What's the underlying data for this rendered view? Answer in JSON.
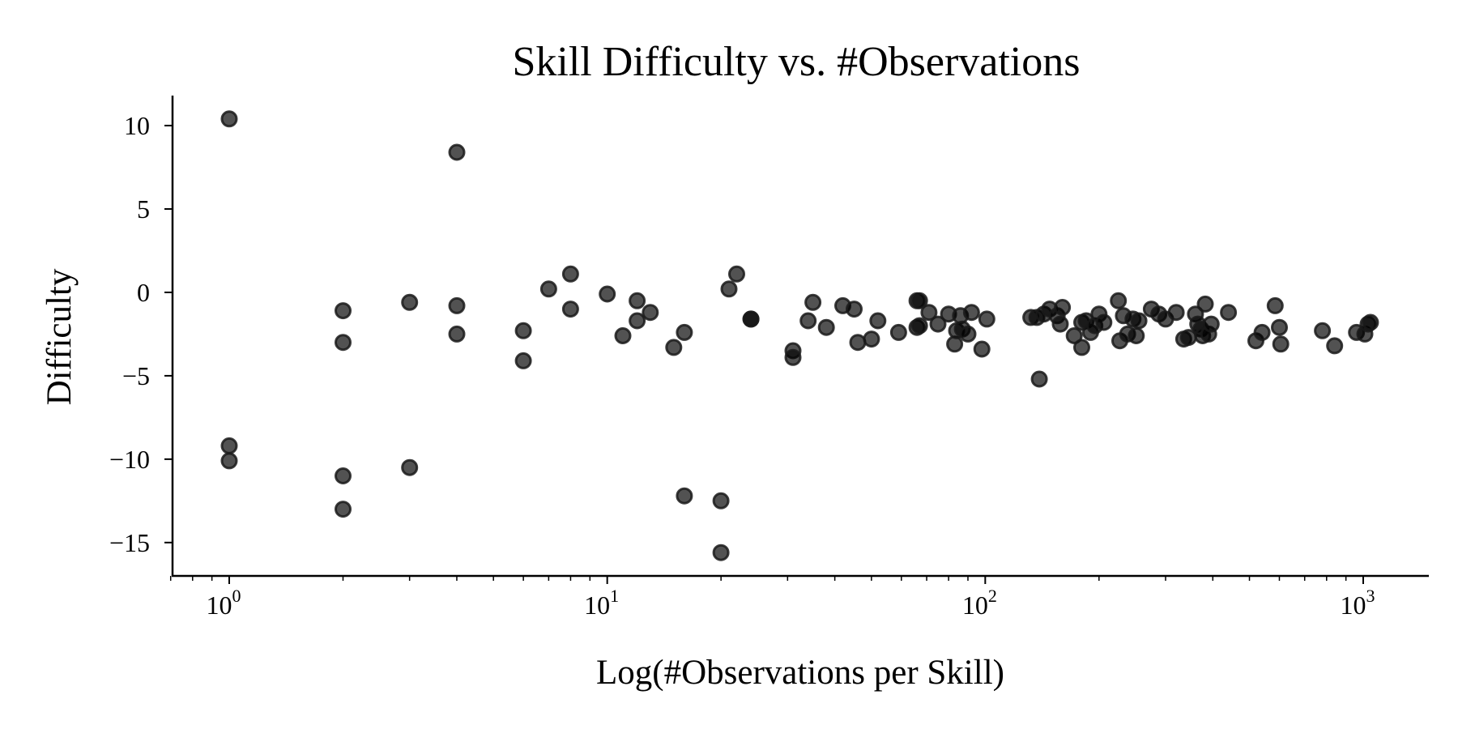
{
  "chart_data": {
    "type": "scatter",
    "title": "Skill Difficulty vs. #Observations",
    "xlabel": "Log(#Observations per Skill)",
    "ylabel": "Difficulty",
    "x_scale": "log",
    "xlim": [
      0.7,
      1500
    ],
    "ylim": [
      -17,
      11.8
    ],
    "grid": false,
    "legend": "none",
    "point_color": "#000000",
    "x_ticks": [
      {
        "base": "10",
        "exp": "0",
        "value": 1
      },
      {
        "base": "10",
        "exp": "1",
        "value": 10
      },
      {
        "base": "10",
        "exp": "2",
        "value": 100
      },
      {
        "base": "10",
        "exp": "3",
        "value": 1000
      }
    ],
    "y_ticks": [
      {
        "label": "10",
        "value": 10
      },
      {
        "label": "5",
        "value": 5
      },
      {
        "label": "0",
        "value": 0
      },
      {
        "label": "−5",
        "value": -5
      },
      {
        "label": "−10",
        "value": -10
      },
      {
        "label": "−15",
        "value": -15
      }
    ],
    "points": [
      [
        1,
        10.4
      ],
      [
        1,
        -9.2
      ],
      [
        1,
        -10.1
      ],
      [
        2,
        -1.1
      ],
      [
        2,
        -3.0
      ],
      [
        2,
        -11.0
      ],
      [
        2,
        -13.0
      ],
      [
        3,
        -0.6
      ],
      [
        3,
        -10.5
      ],
      [
        4,
        8.4
      ],
      [
        4,
        -0.8
      ],
      [
        4,
        -2.5
      ],
      [
        6,
        -2.3
      ],
      [
        6,
        -4.1
      ],
      [
        7,
        0.2
      ],
      [
        8,
        1.1
      ],
      [
        8,
        -1.0
      ],
      [
        10,
        -0.1
      ],
      [
        11,
        -2.6
      ],
      [
        12,
        -0.5
      ],
      [
        12,
        -1.7
      ],
      [
        13,
        -1.2
      ],
      [
        15,
        -3.3
      ],
      [
        16,
        -2.4
      ],
      [
        16,
        -12.2
      ],
      [
        20,
        -12.5
      ],
      [
        20,
        -15.6
      ],
      [
        21,
        0.2
      ],
      [
        22,
        1.1
      ],
      [
        24,
        -1.6
      ],
      [
        24,
        -1.6
      ],
      [
        31,
        -3.5
      ],
      [
        31,
        -3.9
      ],
      [
        34,
        -1.7
      ],
      [
        35,
        -0.6
      ],
      [
        38,
        -2.1
      ],
      [
        42,
        -0.8
      ],
      [
        45,
        -1.0
      ],
      [
        46,
        -3.0
      ],
      [
        50,
        -2.8
      ],
      [
        52,
        -1.7
      ],
      [
        59,
        -2.4
      ],
      [
        66,
        -0.5
      ],
      [
        66,
        -2.1
      ],
      [
        67,
        -0.5
      ],
      [
        67,
        -2.0
      ],
      [
        71,
        -1.2
      ],
      [
        75,
        -1.9
      ],
      [
        80,
        -1.3
      ],
      [
        83,
        -3.1
      ],
      [
        84,
        -2.3
      ],
      [
        86,
        -1.4
      ],
      [
        87,
        -2.2
      ],
      [
        90,
        -2.5
      ],
      [
        92,
        -1.2
      ],
      [
        98,
        -3.4
      ],
      [
        101,
        -1.6
      ],
      [
        132,
        -1.5
      ],
      [
        137,
        -1.5
      ],
      [
        139,
        -5.2
      ],
      [
        143,
        -1.3
      ],
      [
        148,
        -1.0
      ],
      [
        155,
        -1.4
      ],
      [
        158,
        -1.9
      ],
      [
        160,
        -0.9
      ],
      [
        172,
        -2.6
      ],
      [
        180,
        -1.8
      ],
      [
        180,
        -3.3
      ],
      [
        185,
        -1.7
      ],
      [
        190,
        -2.4
      ],
      [
        195,
        -2.0
      ],
      [
        200,
        -1.3
      ],
      [
        206,
        -1.8
      ],
      [
        225,
        -0.5
      ],
      [
        227,
        -2.9
      ],
      [
        232,
        -1.4
      ],
      [
        238,
        -2.5
      ],
      [
        246,
        -1.6
      ],
      [
        251,
        -2.6
      ],
      [
        255,
        -1.7
      ],
      [
        275,
        -1.0
      ],
      [
        288,
        -1.3
      ],
      [
        300,
        -1.6
      ],
      [
        320,
        -1.2
      ],
      [
        335,
        -2.8
      ],
      [
        345,
        -2.7
      ],
      [
        360,
        -1.3
      ],
      [
        365,
        -1.9
      ],
      [
        372,
        -2.2
      ],
      [
        376,
        -2.6
      ],
      [
        382,
        -0.7
      ],
      [
        390,
        -2.5
      ],
      [
        396,
        -1.9
      ],
      [
        440,
        -1.2
      ],
      [
        520,
        -2.9
      ],
      [
        540,
        -2.4
      ],
      [
        585,
        -0.8
      ],
      [
        600,
        -2.1
      ],
      [
        605,
        -3.1
      ],
      [
        780,
        -2.3
      ],
      [
        840,
        -3.2
      ],
      [
        960,
        -2.4
      ],
      [
        1010,
        -2.5
      ],
      [
        1030,
        -1.9
      ],
      [
        1045,
        -1.8
      ]
    ]
  }
}
